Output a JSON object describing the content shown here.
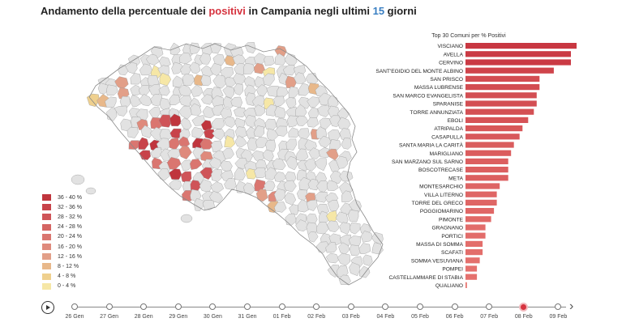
{
  "title": {
    "part1": "Andamento della percentuale dei ",
    "highlight1": "positivi",
    "part2": " in Campania negli ultimi ",
    "highlight2": "15",
    "part3": " giorni"
  },
  "colors": {
    "accent_red": "#d6333f",
    "accent_blue": "#3a7fc2",
    "map_default": "#e2e2e2",
    "map_stroke": "#9a9a9a"
  },
  "legend": [
    {
      "label": "36 - 40 %",
      "color": "#c0353d"
    },
    {
      "label": "32 - 36 %",
      "color": "#c8434a"
    },
    {
      "label": "28 - 32 %",
      "color": "#cf5458"
    },
    {
      "label": "24 - 28 %",
      "color": "#d56563"
    },
    {
      "label": "20 - 24 %",
      "color": "#da7670"
    },
    {
      "label": "16 - 20 %",
      "color": "#df8a7c"
    },
    {
      "label": "12 - 16 %",
      "color": "#e29f88"
    },
    {
      "label": "8 - 12 %",
      "color": "#e8b88a"
    },
    {
      "label": "4 - 8 %",
      "color": "#efd08e"
    },
    {
      "label": "0 - 4 %",
      "color": "#f6e7a6"
    }
  ],
  "chart_data": {
    "type": "bar",
    "title": "Top 30 Comuni per % Positivi",
    "orientation": "horizontal",
    "categories": [
      "VISCIANO",
      "AVELLA",
      "CERVINO",
      "SANT'EGIDIO DEL MONTE ALBINO",
      "SAN PRISCO",
      "MASSA LUBRENSE",
      "SAN MARCO EVANGELISTA",
      "SPARANISE",
      "TORRE ANNUNZIATA",
      "EBOLI",
      "ATRIPALDA",
      "CASAPULLA",
      "SANTA MARIA LA CARITÀ",
      "MARIGLIANO",
      "SAN MARZANO SUL SARNO",
      "BOSCOTRECASE",
      "META",
      "MONTESARCHIO",
      "VILLA LITERNO",
      "TORRE DEL GRECO",
      "POGGIOMARINO",
      "PIMONTE",
      "GRAGNANO",
      "PORTICI",
      "MASSA DI SOMMA",
      "SCAFATI",
      "SOMMA VESUVIANA",
      "POMPEI",
      "CASTELLAMMARE DI STABIA",
      "QUALIANO"
    ],
    "values": [
      39,
      37,
      37,
      31,
      26,
      26,
      25,
      25,
      24,
      22,
      20,
      19,
      17,
      16,
      15,
      15,
      15,
      12,
      11,
      11,
      10,
      9,
      7,
      7,
      6,
      6,
      5,
      4,
      4,
      0.5
    ]
  },
  "timeline": {
    "dates": [
      "26 Gen",
      "27 Gen",
      "28 Gen",
      "29 Gen",
      "30 Gen",
      "31 Gen",
      "01 Feb",
      "02 Feb",
      "03 Feb",
      "04 Feb",
      "05 Feb",
      "06 Feb",
      "07 Feb",
      "08 Feb",
      "09 Feb"
    ],
    "active_index": 13
  }
}
